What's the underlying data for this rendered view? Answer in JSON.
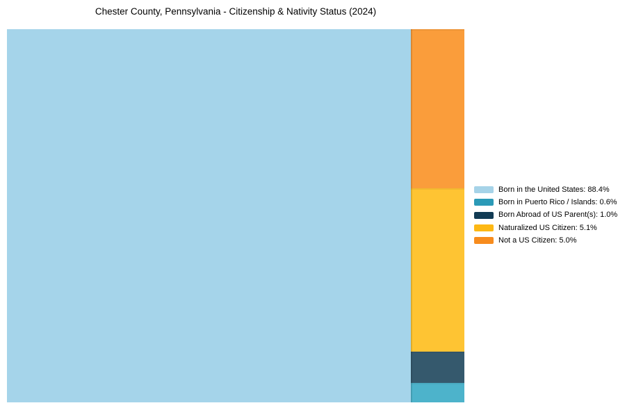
{
  "title": "Chester County, Pennsylvania - Citizenship & Nativity Status (2024)",
  "chart_data": {
    "type": "treemap",
    "title": "Chester County, Pennsylvania - Citizenship & Nativity Status (2024)",
    "unit": "%",
    "legend_position": "right-center",
    "grid": false,
    "categories": [
      {
        "label": "Born in the United States",
        "value": 88.4,
        "legend_color": "#A6D3E8",
        "block_color": "#A5D4EA"
      },
      {
        "label": "Born in Puerto Rico / Islands",
        "value": 0.6,
        "legend_color": "#2B9AB7",
        "block_color": "#4DB3CB"
      },
      {
        "label": "Born Abroad of US Parent(s)",
        "value": 1.0,
        "legend_color": "#123B54",
        "block_color": "#35596D"
      },
      {
        "label": "Naturalized US Citizen",
        "value": 5.1,
        "legend_color": "#FDB814",
        "block_color": "#FEC433"
      },
      {
        "label": "Not a US Citizen",
        "value": 5.0,
        "legend_color": "#F78C1E",
        "block_color": "#FA9D3B"
      }
    ],
    "layout_hints": {
      "main_category_index": 0,
      "column_order_indices": [
        4,
        3,
        2,
        1
      ],
      "note": "main block on left spanning full height; remaining categories stacked top-to-bottom in a right column"
    }
  }
}
